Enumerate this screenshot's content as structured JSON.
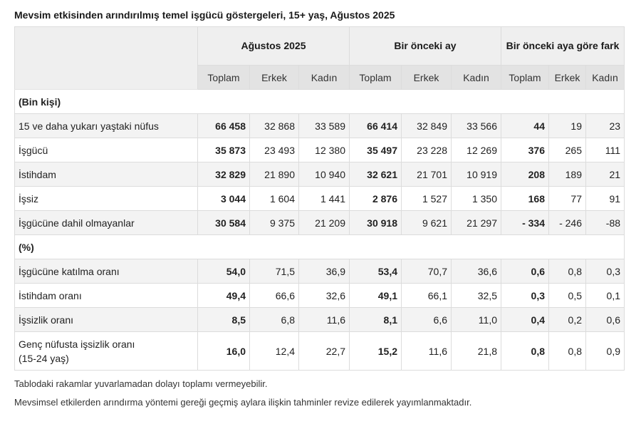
{
  "title": "Mevsim etkisinden arındırılmış temel işgücü göstergeleri, 15+ yaş, Ağustos 2025",
  "groups": [
    "Ağustos 2025",
    "Bir önceki ay",
    "Bir önceki aya göre fark"
  ],
  "subheaders": [
    "Toplam",
    "Erkek",
    "Kadın",
    "Toplam",
    "Erkek",
    "Kadın",
    "Toplam",
    "Erkek",
    "Kadın"
  ],
  "sections": [
    {
      "label": "(Bin kişi)",
      "rows": [
        {
          "label": "15 ve daha yukarı yaştaki nüfus",
          "values": [
            "66 458",
            "32 868",
            "33 589",
            "66 414",
            "32 849",
            "33 566",
            "44",
            "19",
            "23"
          ]
        },
        {
          "label": "İşgücü",
          "values": [
            "35 873",
            "23 493",
            "12 380",
            "35 497",
            "23 228",
            "12 269",
            "376",
            "265",
            "111"
          ]
        },
        {
          "label": "İstihdam",
          "values": [
            "32 829",
            "21 890",
            "10 940",
            "32 621",
            "21 701",
            "10 919",
            "208",
            "189",
            "21"
          ]
        },
        {
          "label": "İşsiz",
          "values": [
            "3 044",
            "1 604",
            "1 441",
            "2 876",
            "1 527",
            "1 350",
            "168",
            "77",
            "91"
          ]
        },
        {
          "label": "İşgücüne dahil olmayanlar",
          "values": [
            "30 584",
            "9 375",
            "21 209",
            "30 918",
            "9 621",
            "21 297",
            "- 334",
            "- 246",
            "-88"
          ]
        }
      ]
    },
    {
      "label": "(%)",
      "rows": [
        {
          "label": "İşgücüne katılma oranı",
          "values": [
            "54,0",
            "71,5",
            "36,9",
            "53,4",
            "70,7",
            "36,6",
            "0,6",
            "0,8",
            "0,3"
          ]
        },
        {
          "label": "İstihdam oranı",
          "values": [
            "49,4",
            "66,6",
            "32,6",
            "49,1",
            "66,1",
            "32,5",
            "0,3",
            "0,5",
            "0,1"
          ]
        },
        {
          "label": "İşsizlik oranı",
          "values": [
            "8,5",
            "6,8",
            "11,6",
            "8,1",
            "6,6",
            "11,0",
            "0,4",
            "0,2",
            "0,6"
          ]
        },
        {
          "label_line1": "Genç nüfusta işsizlik oranı",
          "label_line2": "(15-24 yaş)",
          "values": [
            "16,0",
            "12,4",
            "22,7",
            "15,2",
            "11,6",
            "21,8",
            "0,8",
            "0,8",
            "0,9"
          ]
        }
      ]
    }
  ],
  "notes": [
    "Tablodaki rakamlar yuvarlamadan dolayı toplamı vermeyebilir.",
    "Mevsimsel etkilerden arındırma yöntemi gereği geçmiş aylara ilişkin tahminler revize edilerek yayımlanmaktadır."
  ]
}
